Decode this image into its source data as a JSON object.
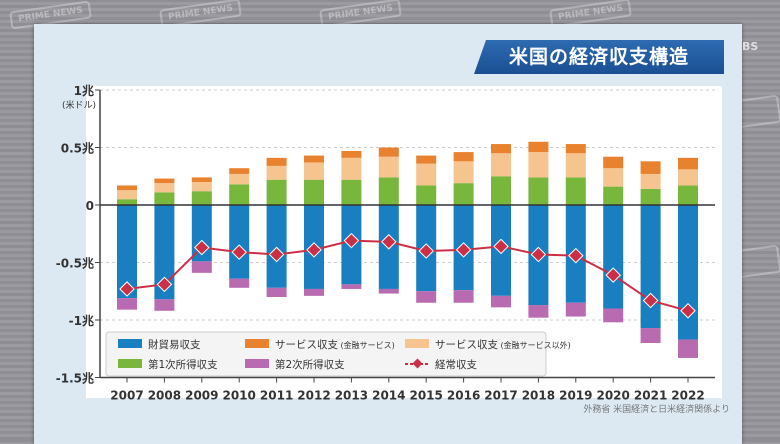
{
  "title": "米国の経済収支構造",
  "broadcaster": "BS",
  "watermark": "PRIME NEWS",
  "source": "外務省 米国経済と日米経済関係より",
  "colors": {
    "goods": "#1a7fc1",
    "services_financial": "#e8822f",
    "services_other": "#f6c48e",
    "primary_income": "#78b63c",
    "secondary_income": "#b86bb0",
    "current_account": "#cc2f45"
  },
  "chart_data": {
    "type": "bar",
    "stacked": true,
    "title": "米国の経済収支構造",
    "ylabel": "(米ドル)",
    "ylim": [
      -1.5,
      1
    ],
    "yticks": [
      {
        "value": 1,
        "label": "1兆"
      },
      {
        "value": 0.5,
        "label": "0.5兆"
      },
      {
        "value": 0,
        "label": "0"
      },
      {
        "value": -0.5,
        "label": "-0.5兆"
      },
      {
        "value": -1,
        "label": "-1兆"
      },
      {
        "value": -1.5,
        "label": "-1.5兆"
      }
    ],
    "grid": true,
    "legend_position": "bottom-left",
    "categories": [
      "2007",
      "2008",
      "2009",
      "2010",
      "2011",
      "2012",
      "2013",
      "2014",
      "2015",
      "2016",
      "2017",
      "2018",
      "2019",
      "2020",
      "2021",
      "2022"
    ],
    "series": [
      {
        "key": "goods",
        "name": "財貿易収支",
        "values": [
          -0.81,
          -0.82,
          -0.49,
          -0.64,
          -0.72,
          -0.73,
          -0.69,
          -0.73,
          -0.75,
          -0.74,
          -0.79,
          -0.87,
          -0.85,
          -0.9,
          -1.07,
          -1.17
        ]
      },
      {
        "key": "secondary_income",
        "name": "第2次所得収支",
        "values": [
          -0.1,
          -0.1,
          -0.1,
          -0.08,
          -0.08,
          -0.06,
          -0.04,
          -0.04,
          -0.1,
          -0.11,
          -0.1,
          -0.11,
          -0.12,
          -0.12,
          -0.13,
          -0.16
        ]
      },
      {
        "key": "primary_income",
        "name": "第1次所得収支",
        "values": [
          0.05,
          0.11,
          0.12,
          0.18,
          0.22,
          0.22,
          0.22,
          0.24,
          0.17,
          0.19,
          0.25,
          0.24,
          0.24,
          0.16,
          0.14,
          0.17
        ]
      },
      {
        "key": "services_other",
        "name": "サービス収支（金融サービス以外）",
        "values": [
          0.08,
          0.08,
          0.08,
          0.09,
          0.12,
          0.15,
          0.19,
          0.18,
          0.19,
          0.19,
          0.2,
          0.22,
          0.21,
          0.16,
          0.13,
          0.14
        ]
      },
      {
        "key": "services_financial",
        "name": "サービス収支（金融サービス）",
        "values": [
          0.04,
          0.04,
          0.04,
          0.05,
          0.07,
          0.06,
          0.06,
          0.08,
          0.07,
          0.08,
          0.08,
          0.09,
          0.08,
          0.1,
          0.11,
          0.1
        ]
      }
    ],
    "line": {
      "key": "current_account",
      "name": "経常収支",
      "values": [
        -0.73,
        -0.69,
        -0.37,
        -0.41,
        -0.43,
        -0.39,
        -0.31,
        -0.32,
        -0.4,
        -0.39,
        -0.36,
        -0.43,
        -0.44,
        -0.61,
        -0.83,
        -0.92
      ]
    },
    "legend": [
      {
        "key": "goods",
        "label": "財貿易収支"
      },
      {
        "key": "services_financial",
        "label": "サービス収支",
        "note": "(金融サービス)"
      },
      {
        "key": "services_other",
        "label": "サービス収支",
        "note": "(金融サービス以外)"
      },
      {
        "key": "primary_income",
        "label": "第1次所得収支"
      },
      {
        "key": "secondary_income",
        "label": "第2次所得収支"
      },
      {
        "key": "current_account",
        "label": "経常収支"
      }
    ]
  }
}
